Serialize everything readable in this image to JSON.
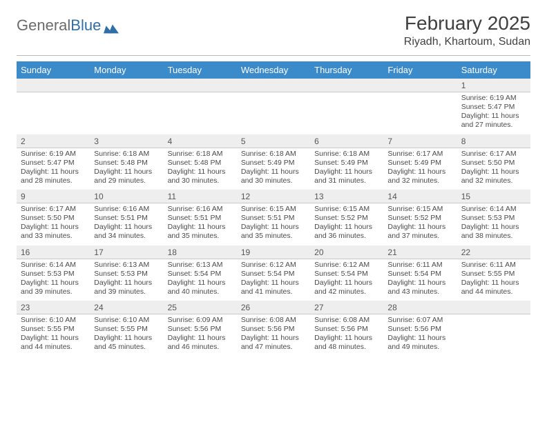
{
  "logo": {
    "word1": "General",
    "word2": "Blue"
  },
  "header": {
    "title": "February 2025",
    "subtitle": "Riyadh, Khartoum, Sudan"
  },
  "colors": {
    "headerBar": "#3b8bca",
    "numRowBg": "#eeeeee",
    "text": "#4a4a4a",
    "logoGray": "#6b6b6b",
    "logoBlue": "#2f6fa7"
  },
  "dayNames": [
    "Sunday",
    "Monday",
    "Tuesday",
    "Wednesday",
    "Thursday",
    "Friday",
    "Saturday"
  ],
  "weeks": [
    {
      "nums": [
        "",
        "",
        "",
        "",
        "",
        "",
        "1"
      ],
      "cells": [
        null,
        null,
        null,
        null,
        null,
        null,
        {
          "sunrise": "6:19 AM",
          "sunset": "5:47 PM",
          "daylight": "11 hours and 27 minutes."
        }
      ]
    },
    {
      "nums": [
        "2",
        "3",
        "4",
        "5",
        "6",
        "7",
        "8"
      ],
      "cells": [
        {
          "sunrise": "6:19 AM",
          "sunset": "5:47 PM",
          "daylight": "11 hours and 28 minutes."
        },
        {
          "sunrise": "6:18 AM",
          "sunset": "5:48 PM",
          "daylight": "11 hours and 29 minutes."
        },
        {
          "sunrise": "6:18 AM",
          "sunset": "5:48 PM",
          "daylight": "11 hours and 30 minutes."
        },
        {
          "sunrise": "6:18 AM",
          "sunset": "5:49 PM",
          "daylight": "11 hours and 30 minutes."
        },
        {
          "sunrise": "6:18 AM",
          "sunset": "5:49 PM",
          "daylight": "11 hours and 31 minutes."
        },
        {
          "sunrise": "6:17 AM",
          "sunset": "5:49 PM",
          "daylight": "11 hours and 32 minutes."
        },
        {
          "sunrise": "6:17 AM",
          "sunset": "5:50 PM",
          "daylight": "11 hours and 32 minutes."
        }
      ]
    },
    {
      "nums": [
        "9",
        "10",
        "11",
        "12",
        "13",
        "14",
        "15"
      ],
      "cells": [
        {
          "sunrise": "6:17 AM",
          "sunset": "5:50 PM",
          "daylight": "11 hours and 33 minutes."
        },
        {
          "sunrise": "6:16 AM",
          "sunset": "5:51 PM",
          "daylight": "11 hours and 34 minutes."
        },
        {
          "sunrise": "6:16 AM",
          "sunset": "5:51 PM",
          "daylight": "11 hours and 35 minutes."
        },
        {
          "sunrise": "6:15 AM",
          "sunset": "5:51 PM",
          "daylight": "11 hours and 35 minutes."
        },
        {
          "sunrise": "6:15 AM",
          "sunset": "5:52 PM",
          "daylight": "11 hours and 36 minutes."
        },
        {
          "sunrise": "6:15 AM",
          "sunset": "5:52 PM",
          "daylight": "11 hours and 37 minutes."
        },
        {
          "sunrise": "6:14 AM",
          "sunset": "5:53 PM",
          "daylight": "11 hours and 38 minutes."
        }
      ]
    },
    {
      "nums": [
        "16",
        "17",
        "18",
        "19",
        "20",
        "21",
        "22"
      ],
      "cells": [
        {
          "sunrise": "6:14 AM",
          "sunset": "5:53 PM",
          "daylight": "11 hours and 39 minutes."
        },
        {
          "sunrise": "6:13 AM",
          "sunset": "5:53 PM",
          "daylight": "11 hours and 39 minutes."
        },
        {
          "sunrise": "6:13 AM",
          "sunset": "5:54 PM",
          "daylight": "11 hours and 40 minutes."
        },
        {
          "sunrise": "6:12 AM",
          "sunset": "5:54 PM",
          "daylight": "11 hours and 41 minutes."
        },
        {
          "sunrise": "6:12 AM",
          "sunset": "5:54 PM",
          "daylight": "11 hours and 42 minutes."
        },
        {
          "sunrise": "6:11 AM",
          "sunset": "5:54 PM",
          "daylight": "11 hours and 43 minutes."
        },
        {
          "sunrise": "6:11 AM",
          "sunset": "5:55 PM",
          "daylight": "11 hours and 44 minutes."
        }
      ]
    },
    {
      "nums": [
        "23",
        "24",
        "25",
        "26",
        "27",
        "28",
        ""
      ],
      "cells": [
        {
          "sunrise": "6:10 AM",
          "sunset": "5:55 PM",
          "daylight": "11 hours and 44 minutes."
        },
        {
          "sunrise": "6:10 AM",
          "sunset": "5:55 PM",
          "daylight": "11 hours and 45 minutes."
        },
        {
          "sunrise": "6:09 AM",
          "sunset": "5:56 PM",
          "daylight": "11 hours and 46 minutes."
        },
        {
          "sunrise": "6:08 AM",
          "sunset": "5:56 PM",
          "daylight": "11 hours and 47 minutes."
        },
        {
          "sunrise": "6:08 AM",
          "sunset": "5:56 PM",
          "daylight": "11 hours and 48 minutes."
        },
        {
          "sunrise": "6:07 AM",
          "sunset": "5:56 PM",
          "daylight": "11 hours and 49 minutes."
        },
        null
      ]
    }
  ],
  "labels": {
    "sunrise": "Sunrise: ",
    "sunset": "Sunset: ",
    "daylight": "Daylight: "
  }
}
